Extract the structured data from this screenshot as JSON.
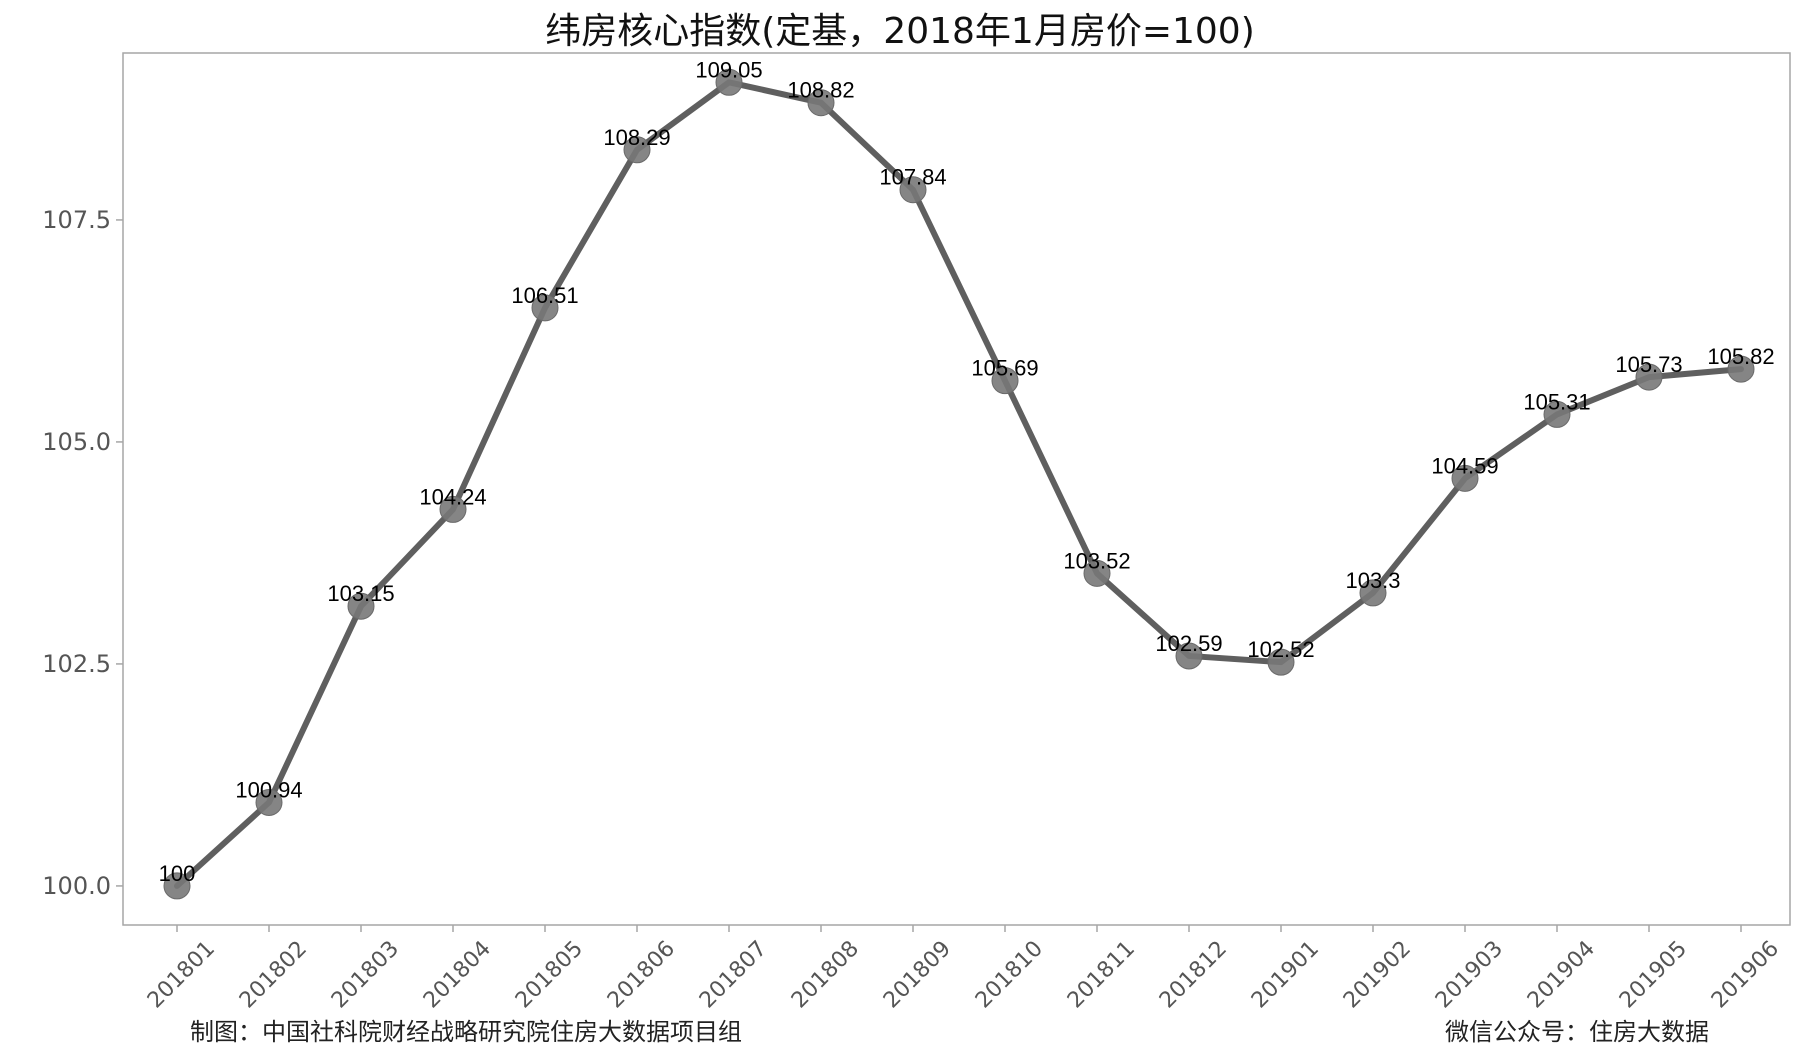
{
  "chart_data": {
    "type": "line",
    "title": "纬房核心指数(定基，2018年1月房价=100)",
    "xlabel": "",
    "ylabel": "",
    "categories": [
      "201801",
      "201802",
      "201803",
      "201804",
      "201805",
      "201806",
      "201807",
      "201808",
      "201809",
      "201810",
      "201811",
      "201812",
      "201901",
      "201902",
      "201903",
      "201904",
      "201905",
      "201906"
    ],
    "values": [
      100,
      100.94,
      103.15,
      104.24,
      106.51,
      108.29,
      109.05,
      108.82,
      107.84,
      105.69,
      103.52,
      102.59,
      102.52,
      103.3,
      104.59,
      105.31,
      105.73,
      105.82
    ],
    "value_labels": [
      "100",
      "100.94",
      "103.15",
      "104.24",
      "106.51",
      "108.29",
      "109.05",
      "108.82",
      "107.84",
      "105.69",
      "103.52",
      "102.59",
      "102.52",
      "103.3",
      "104.59",
      "105.31",
      "105.73",
      "105.82"
    ],
    "ylim": [
      99.56,
      109.38
    ],
    "yticks": [
      100.0,
      102.5,
      105.0,
      107.5
    ],
    "ytick_labels": [
      "100.0",
      "102.5",
      "105.0",
      "107.5"
    ],
    "grid": false,
    "legend": "none",
    "colors": {
      "line": "#5f5f5f",
      "marker": "#787878",
      "axis": "#a6a6a6"
    }
  },
  "footer": {
    "credit_left": "制图：中国社科院财经战略研究院住房大数据项目组",
    "credit_right": "微信公众号：住房大数据"
  }
}
